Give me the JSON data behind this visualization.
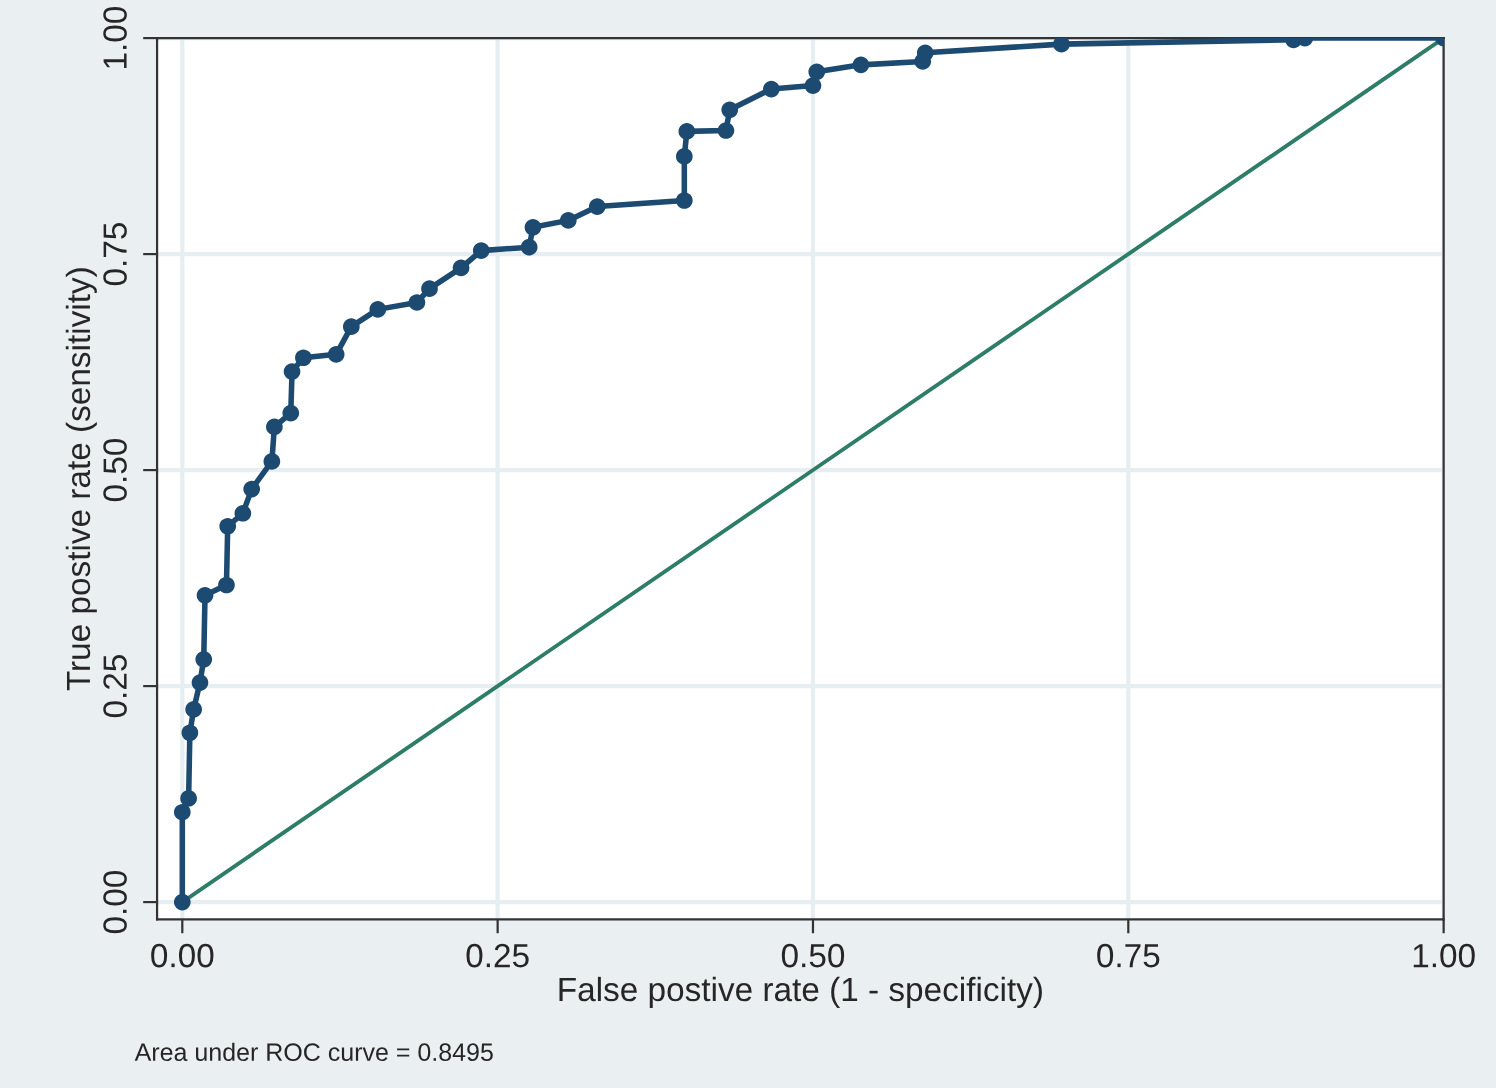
{
  "chart_data": {
    "type": "line",
    "xlabel": "False postive rate (1 - specificity)",
    "ylabel": "True postive rate (sensitivity)",
    "xlim": [
      -0.02,
      1.0
    ],
    "ylim": [
      -0.02,
      1.0
    ],
    "xticks": [
      {
        "value": 0,
        "label": "0.00"
      },
      {
        "value": 0.25,
        "label": "0.25"
      },
      {
        "value": 0.5,
        "label": "0.50"
      },
      {
        "value": 0.75,
        "label": "0.75"
      },
      {
        "value": 1,
        "label": "1.00"
      }
    ],
    "yticks": [
      {
        "value": 0,
        "label": "0.00"
      },
      {
        "value": 0.25,
        "label": "0.25"
      },
      {
        "value": 0.5,
        "label": "0.50"
      },
      {
        "value": 0.75,
        "label": "0.75"
      },
      {
        "value": 1,
        "label": "1.00"
      }
    ],
    "grid": true,
    "series": [
      {
        "color": "#1c4a70",
        "marker": "circle",
        "x": [
          0,
          0,
          0.005,
          0.006,
          0.009,
          0.014,
          0.017,
          0.018,
          0.035,
          0.036,
          0.048,
          0.055,
          0.071,
          0.073,
          0.086,
          0.087,
          0.096,
          0.122,
          0.134,
          0.155,
          0.186,
          0.196,
          0.221,
          0.237,
          0.275,
          0.278,
          0.306,
          0.329,
          0.398,
          0.398,
          0.4,
          0.431,
          0.434,
          0.467,
          0.5,
          0.503,
          0.538,
          0.587,
          0.589,
          0.697,
          0.881,
          0.89,
          1.0
        ],
        "values": [
          0,
          0.104,
          0.12,
          0.196,
          0.223,
          0.254,
          0.281,
          0.355,
          0.367,
          0.435,
          0.45,
          0.478,
          0.51,
          0.55,
          0.566,
          0.614,
          0.63,
          0.634,
          0.666,
          0.686,
          0.694,
          0.71,
          0.734,
          0.754,
          0.758,
          0.781,
          0.789,
          0.805,
          0.812,
          0.863,
          0.892,
          0.893,
          0.917,
          0.941,
          0.945,
          0.961,
          0.969,
          0.973,
          0.983,
          0.993,
          0.998,
          1.0,
          1.0
        ]
      },
      {
        "color": "#2e7d67",
        "marker": "none",
        "x": [
          0,
          1
        ],
        "values": [
          0,
          1
        ]
      }
    ],
    "annotations": [
      "Area under ROC curve = 0.8495"
    ]
  }
}
